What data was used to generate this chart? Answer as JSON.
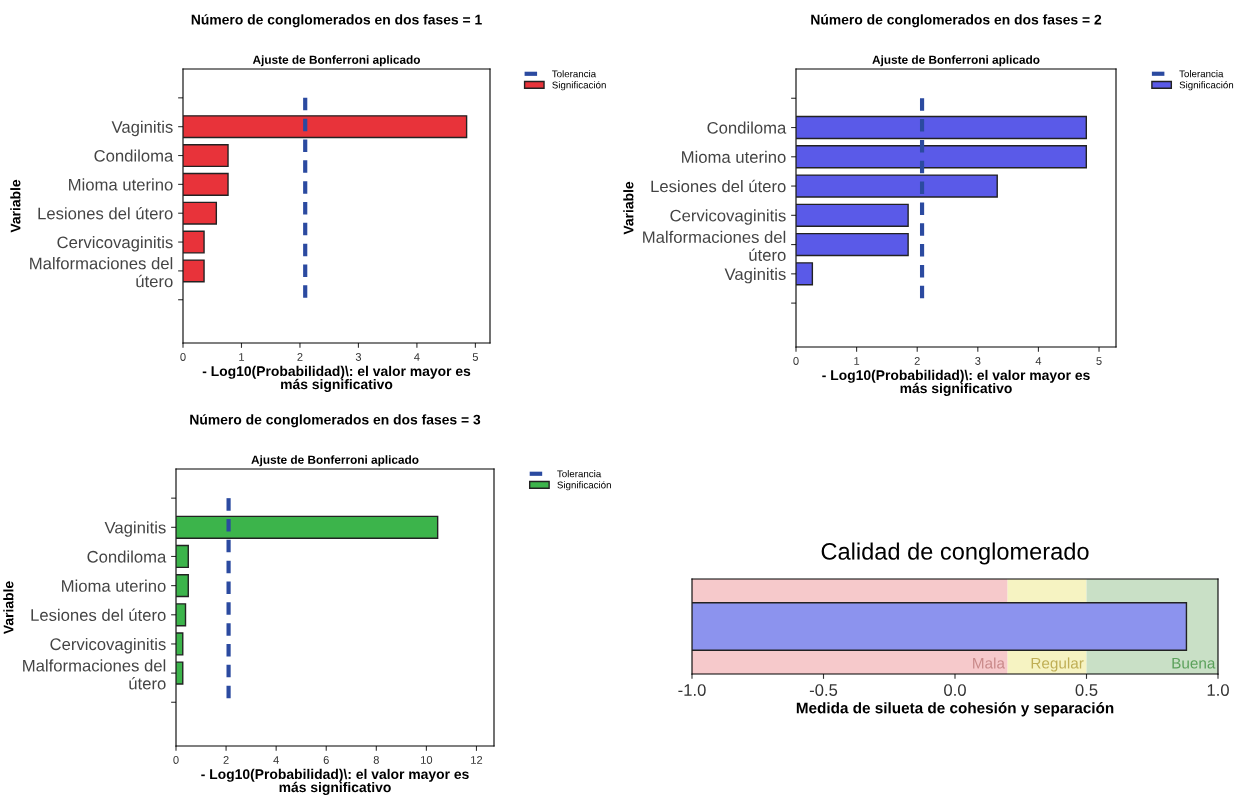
{
  "chart_data": [
    {
      "type": "bar",
      "orientation": "horizontal",
      "title": "Número de conglomerados en dos fases = 1",
      "subtitle": "Ajuste de Bonferroni aplicado",
      "xlabel": "- Log10(Probabilidad)\\: el valor mayor es\nmás significativo",
      "ylabel": "Variable",
      "categories": [
        null,
        "Vaginitis",
        "Condiloma",
        "Mioma uterino",
        "Lesiones del útero",
        "Cervicovaginitis",
        "Malformaciones del\nútero",
        null
      ],
      "series": [
        {
          "name": "Significación",
          "color": "#e8333a",
          "values": [
            null,
            4.85,
            0.77,
            0.77,
            0.57,
            0.36,
            0.36,
            null
          ]
        }
      ],
      "xlim": [
        0,
        5.25
      ],
      "xticks": [
        0,
        1,
        2,
        3,
        4,
        5
      ],
      "ref_lines": [
        {
          "axis": "x",
          "value": 2.09,
          "label": "Tolerancia",
          "color": "#2b4aa0",
          "line_style": "dashed"
        }
      ],
      "legend": "top right",
      "grid": false
    },
    {
      "type": "bar",
      "orientation": "horizontal",
      "title": "Número de conglomerados en dos fases = 2",
      "subtitle": "Ajuste de Bonferroni aplicado",
      "xlabel": "- Log10(Probabilidad)\\: el valor mayor es\nmás significativo",
      "ylabel": "Variable",
      "categories": [
        null,
        "Condiloma",
        "Mioma uterino",
        "Lesiones del útero",
        "Cervicovaginitis",
        "Malformaciones del\nútero",
        "Vaginitis",
        null
      ],
      "series": [
        {
          "name": "Significación",
          "color": "#5a5ae8",
          "values": [
            null,
            4.79,
            4.79,
            3.32,
            1.85,
            1.85,
            0.27,
            null
          ]
        }
      ],
      "xlim": [
        0,
        5.28
      ],
      "xticks": [
        0,
        1,
        2,
        3,
        4,
        5
      ],
      "ref_lines": [
        {
          "axis": "x",
          "value": 2.08,
          "label": "Tolerancia",
          "color": "#2b4aa0",
          "line_style": "dashed"
        }
      ],
      "legend": "top right",
      "grid": false
    },
    {
      "type": "bar",
      "orientation": "horizontal",
      "title": "Número de conglomerados en dos fases = 3",
      "subtitle": "Ajuste de Bonferroni aplicado",
      "xlabel": "- Log10(Probabilidad)\\: el valor mayor es\nmás significativo",
      "ylabel": "Variable",
      "categories": [
        null,
        "Vaginitis",
        "Condiloma",
        "Mioma uterino",
        "Lesiones del útero",
        "Cervicovaginitis",
        "Malformaciones del\nútero",
        null
      ],
      "series": [
        {
          "name": "Significación",
          "color": "#3cb44b",
          "values": [
            null,
            10.45,
            0.49,
            0.49,
            0.38,
            0.27,
            0.27,
            null
          ]
        }
      ],
      "xlim": [
        0,
        12.7
      ],
      "xticks": [
        0,
        2,
        4,
        6,
        8,
        10,
        12
      ],
      "ref_lines": [
        {
          "axis": "x",
          "value": 2.1,
          "label": "Tolerancia",
          "color": "#2b4aa0",
          "line_style": "dashed"
        }
      ],
      "legend": "top right",
      "grid": false
    },
    {
      "type": "bar",
      "orientation": "horizontal",
      "title": "Calidad de conglomerado",
      "xlabel": "Medida de silueta de cohesión y separación",
      "categories": [
        null
      ],
      "series": [
        {
          "color": "#8c93ee",
          "values": [
            1.88
          ],
          "base": [
            -1
          ]
        }
      ],
      "xlim": [
        -1,
        1
      ],
      "xticks": [
        {
          "value": -1,
          "label": "-1.0"
        },
        {
          "value": -0.5,
          "label": "-0.5"
        },
        {
          "value": 0,
          "label": "0.0"
        },
        {
          "value": 0.5,
          "label": "0.5"
        },
        {
          "value": 1,
          "label": "1.0"
        }
      ],
      "bands": [
        {
          "axis": "x",
          "from": -1,
          "to": 0.2,
          "label": "Mala",
          "color": "#f6c9cb"
        },
        {
          "axis": "x",
          "from": 0.2,
          "to": 0.5,
          "label": "Regular",
          "color": "#f6f3c2"
        },
        {
          "axis": "x",
          "from": 0.5,
          "to": 1,
          "label": "Buena",
          "color": "#c9e0c6"
        }
      ],
      "legend": false,
      "grid": false
    }
  ]
}
